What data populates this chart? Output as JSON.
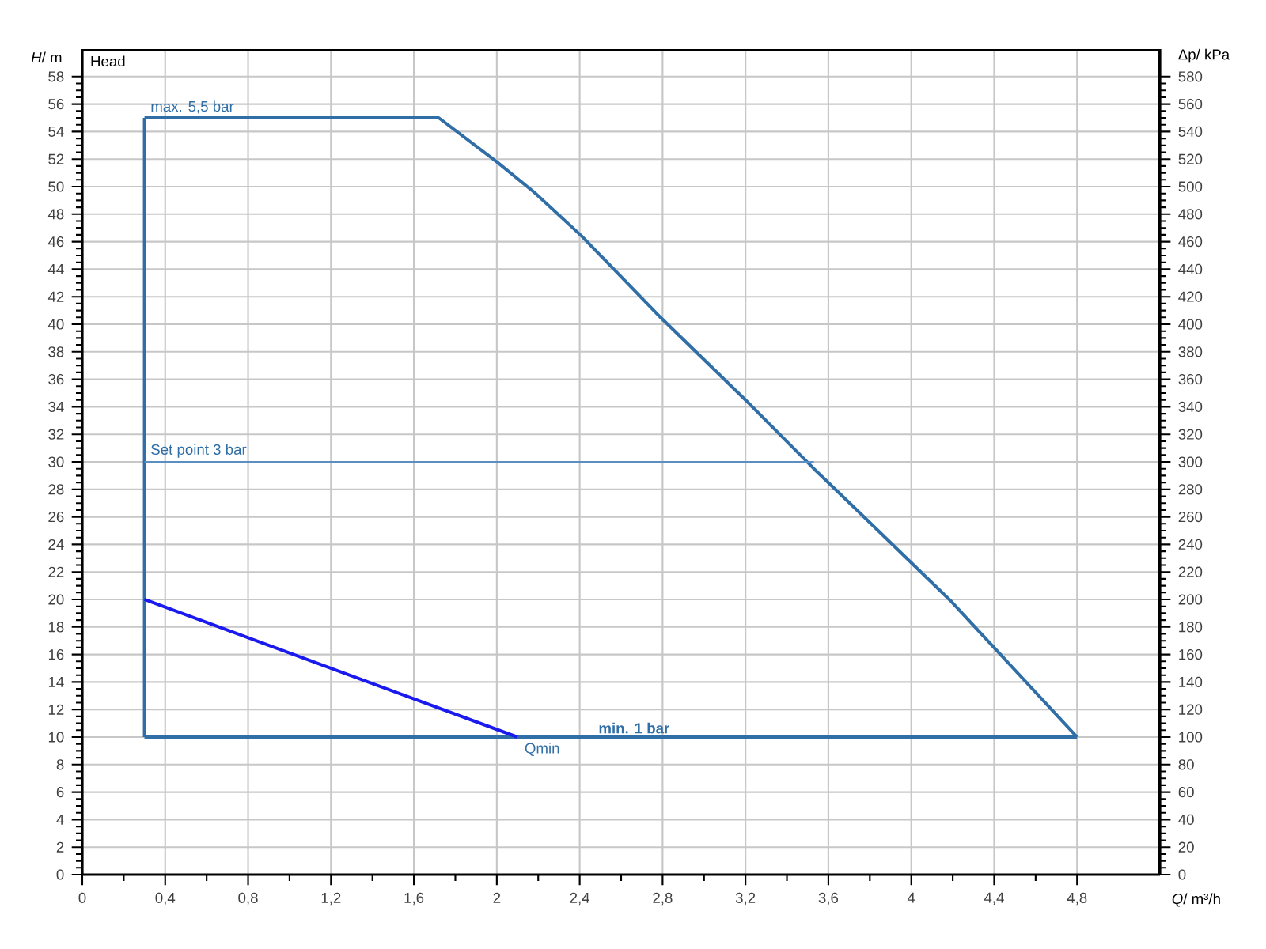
{
  "chart_data": {
    "type": "line",
    "xlabel": "*Q*/ m³/h",
    "ylabel": "*H*/ m",
    "y2label": "Δp/ kPa",
    "xlim": [
      0,
      5.2
    ],
    "ylim": [
      0,
      60
    ],
    "y2lim": [
      0,
      600
    ],
    "xticks": [
      0,
      {
        "value": 0.4,
        "label": "0,4"
      },
      {
        "value": 0.8,
        "label": "0,8"
      },
      {
        "value": 1.2,
        "label": "1,2"
      },
      {
        "value": 1.6,
        "label": "1,6"
      },
      2,
      {
        "value": 2.4,
        "label": "2,4"
      },
      {
        "value": 2.8,
        "label": "2,8"
      },
      {
        "value": 3.2,
        "label": "3,2"
      },
      {
        "value": 3.6,
        "label": "3,6"
      },
      4,
      {
        "value": 4.4,
        "label": "4,4"
      },
      {
        "value": 4.8,
        "label": "4,8"
      }
    ],
    "yticks": [
      0,
      2,
      4,
      6,
      8,
      10,
      12,
      14,
      16,
      18,
      20,
      22,
      24,
      26,
      28,
      30,
      32,
      34,
      36,
      38,
      40,
      42,
      44,
      46,
      48,
      50,
      52,
      54,
      56,
      58
    ],
    "y2ticks": [
      0,
      20,
      40,
      60,
      80,
      100,
      120,
      140,
      160,
      180,
      200,
      220,
      240,
      260,
      280,
      300,
      320,
      340,
      360,
      380,
      400,
      420,
      440,
      460,
      480,
      500,
      520,
      540,
      560,
      580
    ],
    "grid": true,
    "series": [
      {
        "color": "#2f6ea6",
        "x": [
          0.3,
          1.72,
          2.0,
          2.18,
          2.41,
          2.79,
          3.2,
          3.53,
          3.71,
          4.19,
          4.72,
          4.8
        ],
        "values": [
          55,
          55,
          51.8,
          49.6,
          46.4,
          40.5,
          34.5,
          29.5,
          26.9,
          19.9,
          11.3,
          10
        ]
      },
      {
        "color": "#2f6ea6",
        "x": [
          0.3,
          4.8
        ],
        "values": [
          10,
          10
        ]
      },
      {
        "color": "#2f6ea6",
        "x": [
          0.3,
          0.3
        ],
        "values": [
          10,
          55
        ]
      },
      {
        "color": "#5b8fc4",
        "x": [
          0.3,
          3.53
        ],
        "values": [
          30,
          30
        ]
      },
      {
        "color": "#1a1aee",
        "x": [
          0.3,
          2.1
        ],
        "values": [
          20,
          10
        ]
      }
    ],
    "annotations": [
      "Head",
      "max. 5,5 bar",
      "Set point 3 bar",
      "**min. 1 bar**",
      "Qmin"
    ]
  }
}
